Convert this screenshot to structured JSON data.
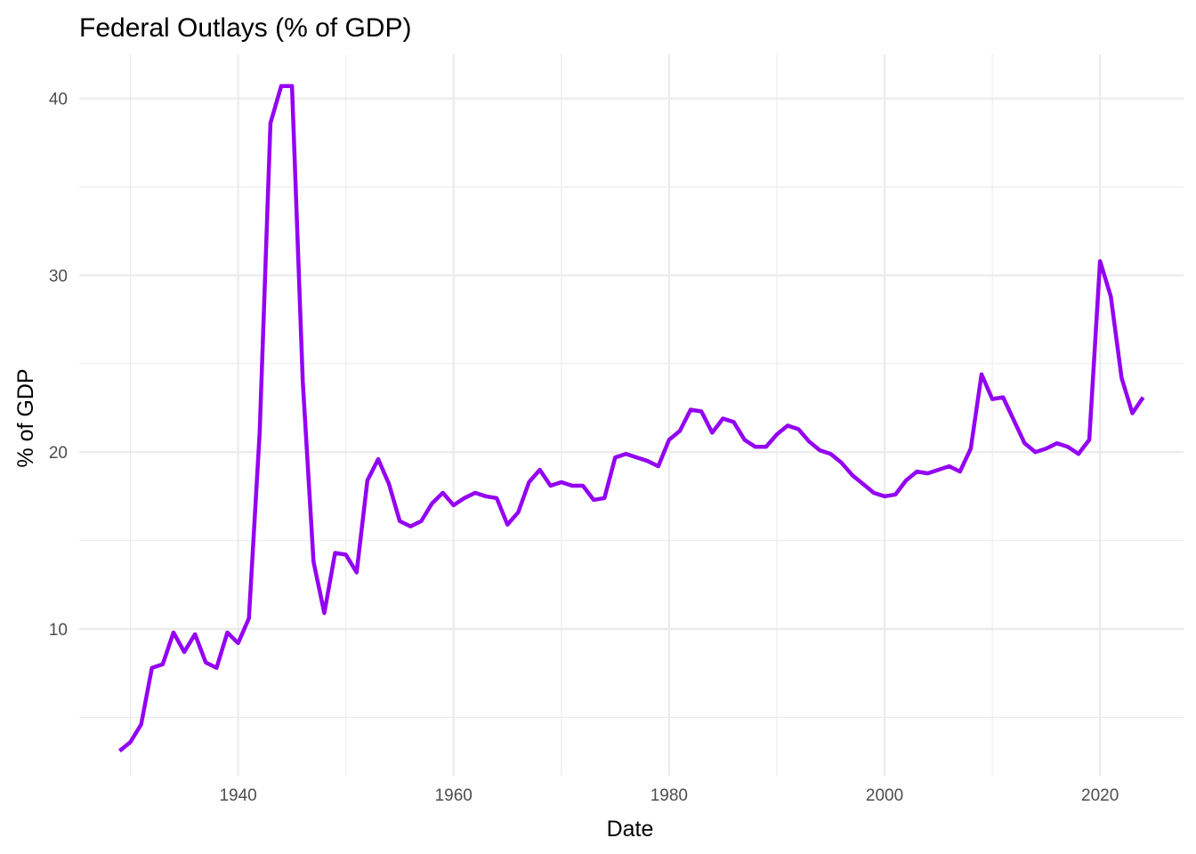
{
  "chart_data": {
    "type": "line",
    "title": "Federal Outlays (% of GDP)",
    "xlabel": "Date",
    "ylabel": "% of GDP",
    "xlim": [
      1925.25,
      2027.75
    ],
    "ylim": [
      1.7,
      42.5
    ],
    "x_ticks": [
      1940,
      1960,
      1980,
      2000,
      2020
    ],
    "x_minor_ticks": [
      1930,
      1950,
      1970,
      1990,
      2010
    ],
    "y_ticks": [
      10,
      20,
      30,
      40
    ],
    "y_minor_ticks": [
      5,
      15,
      25,
      35
    ],
    "grid": true,
    "legend": "none",
    "line_color": "#9400f2",
    "series": [
      {
        "x": [
          1929,
          1930,
          1931,
          1932,
          1933,
          1934,
          1935,
          1936,
          1937,
          1938,
          1939,
          1940,
          1941,
          1942,
          1943,
          1944,
          1945,
          1946,
          1947,
          1948,
          1949,
          1950,
          1951,
          1952,
          1953,
          1954,
          1955,
          1956,
          1957,
          1958,
          1959,
          1960,
          1961,
          1962,
          1963,
          1964,
          1965,
          1966,
          1967,
          1968,
          1969,
          1970,
          1971,
          1972,
          1973,
          1974,
          1975,
          1976,
          1977,
          1978,
          1979,
          1980,
          1981,
          1982,
          1983,
          1984,
          1985,
          1986,
          1987,
          1988,
          1989,
          1990,
          1991,
          1992,
          1993,
          1994,
          1995,
          1996,
          1997,
          1998,
          1999,
          2000,
          2001,
          2002,
          2003,
          2004,
          2005,
          2006,
          2007,
          2008,
          2009,
          2010,
          2011,
          2012,
          2013,
          2014,
          2015,
          2016,
          2017,
          2018,
          2019,
          2020,
          2021,
          2022,
          2023,
          2024
        ],
        "y": [
          3.1,
          3.6,
          4.6,
          7.8,
          8.0,
          9.8,
          8.7,
          9.7,
          8.1,
          7.8,
          9.8,
          9.2,
          10.6,
          21.1,
          38.6,
          40.7,
          40.7,
          24.0,
          13.8,
          10.9,
          14.3,
          14.2,
          13.2,
          18.4,
          19.6,
          18.2,
          16.1,
          15.8,
          16.1,
          17.1,
          17.7,
          17.0,
          17.4,
          17.7,
          17.5,
          17.4,
          15.9,
          16.6,
          18.3,
          19.0,
          18.1,
          18.3,
          18.1,
          18.1,
          17.3,
          17.4,
          19.7,
          19.9,
          19.7,
          19.5,
          19.2,
          20.7,
          21.2,
          22.4,
          22.3,
          21.1,
          21.9,
          21.7,
          20.7,
          20.3,
          20.3,
          21.0,
          21.5,
          21.3,
          20.6,
          20.1,
          19.9,
          19.4,
          18.7,
          18.2,
          17.7,
          17.5,
          17.6,
          18.4,
          18.9,
          18.8,
          19.0,
          19.2,
          18.9,
          20.2,
          24.4,
          23.0,
          23.1,
          21.8,
          20.5,
          20.0,
          20.2,
          20.5,
          20.3,
          19.9,
          20.7,
          30.8,
          28.8,
          24.2,
          22.2,
          23.1
        ]
      }
    ]
  }
}
